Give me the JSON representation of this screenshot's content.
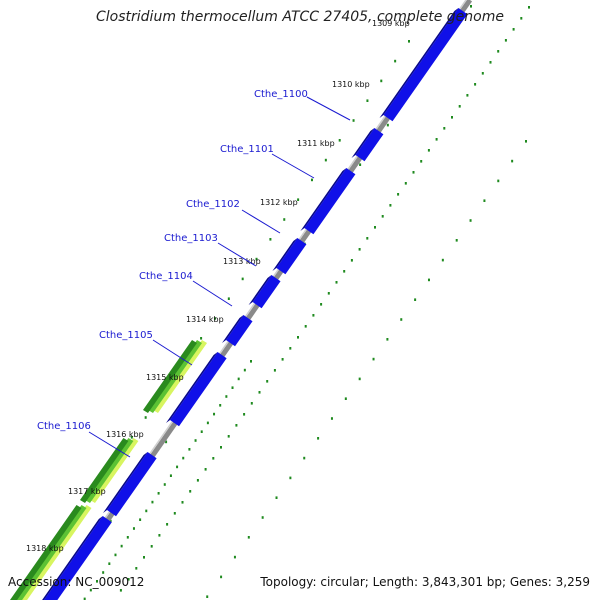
{
  "genome": {
    "title": "Clostridium thermocellum ATCC 27405, complete genome",
    "accession": "Accession: NC_009012",
    "topology": "Topology: circular; Length: 3,843,301 bp; Genes: 3,259"
  },
  "ticks": [
    {
      "label": "1309 kbp"
    },
    {
      "label": "1310 kbp"
    },
    {
      "label": "1311 kbp"
    },
    {
      "label": "1312 kbp"
    },
    {
      "label": "1313 kbp"
    },
    {
      "label": "1314 kbp"
    },
    {
      "label": "1315 kbp"
    },
    {
      "label": "1316 kbp"
    },
    {
      "label": "1317 kbp"
    },
    {
      "label": "1318 kbp"
    }
  ],
  "genes": [
    {
      "name": "Cthe_1100"
    },
    {
      "name": "Cthe_1101"
    },
    {
      "name": "Cthe_1102"
    },
    {
      "name": "Cthe_1103"
    },
    {
      "name": "Cthe_1104"
    },
    {
      "name": "Cthe_1105"
    },
    {
      "name": "Cthe_1106"
    }
  ],
  "colors": {
    "cds": "#1010e8",
    "cds_side": "#06068a",
    "green_dark": "#2a8a1e",
    "green_mid": "#5cc234",
    "green_light": "#d8f560",
    "backbone": "#8a8a8a",
    "dots": "#1f8a1f",
    "label": "#1a1ad0"
  }
}
